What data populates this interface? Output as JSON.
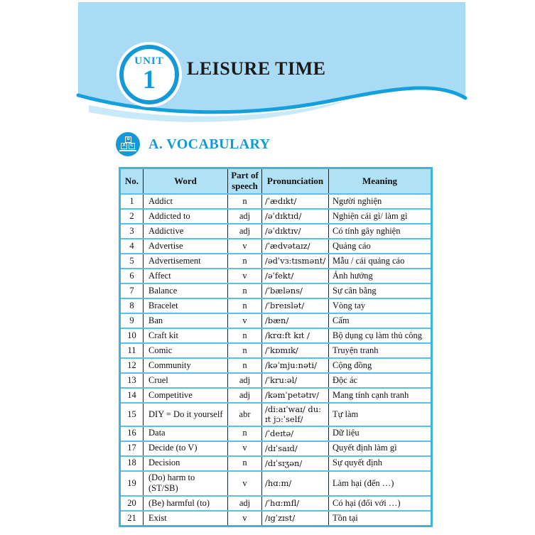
{
  "page": {
    "unit_badge": {
      "label": "UNIT",
      "number": "1"
    },
    "title": "LEISURE TIME",
    "section": {
      "heading": "A. VOCABULARY",
      "icon": "abc-blocks-icon",
      "icon_letters": {
        "top": "B",
        "left": "A",
        "right": "C"
      }
    }
  },
  "vocab_table": {
    "headers": [
      "No.",
      "Word",
      "Part of speech",
      "Pronunciation",
      "Meaning"
    ],
    "rows": [
      {
        "no": "1",
        "word": "Addict",
        "pos": "n",
        "pron": "/ˈædɪkt/",
        "meaning": "Người nghiện"
      },
      {
        "no": "2",
        "word": "Addicted to",
        "pos": "adj",
        "pron": "/əˈdɪktɪd/",
        "meaning": "Nghiện cái gì/ làm gì"
      },
      {
        "no": "3",
        "word": "Addictive",
        "pos": "adj",
        "pron": "/əˈdɪktɪv/",
        "meaning": "Có tính gây nghiện"
      },
      {
        "no": "4",
        "word": "Advertise",
        "pos": "v",
        "pron": "/ˈædvətaɪz/",
        "meaning": "Quảng cáo"
      },
      {
        "no": "5",
        "word": "Advertisement",
        "pos": "n",
        "pron": "/ədˈvɜ:tɪsmənt/",
        "meaning": "Mẫu / cái quảng cáo"
      },
      {
        "no": "6",
        "word": "Affect",
        "pos": "v",
        "pron": "/əˈfekt/",
        "meaning": "Ảnh hưởng"
      },
      {
        "no": "7",
        "word": "Balance",
        "pos": "n",
        "pron": "/ˈbæləns/",
        "meaning": "Sự cân bằng"
      },
      {
        "no": "8",
        "word": "Bracelet",
        "pos": "n",
        "pron": "/ˈbreɪslət/",
        "meaning": "Vòng tay"
      },
      {
        "no": "9",
        "word": "Ban",
        "pos": "v",
        "pron": "/bæn/",
        "meaning": "Cấm"
      },
      {
        "no": "10",
        "word": "Craft kit",
        "pos": "n",
        "pron": "/krɑ:ft kɪt /",
        "meaning": "Bộ dụng cụ làm thủ công"
      },
      {
        "no": "11",
        "word": "Comic",
        "pos": "n",
        "pron": "/ˈkɒmɪk/",
        "meaning": "Truyện tranh"
      },
      {
        "no": "12",
        "word": "Community",
        "pos": "n",
        "pron": "/kəˈmju:nəti/",
        "meaning": "Cộng đồng"
      },
      {
        "no": "13",
        "word": "Cruel",
        "pos": "adj",
        "pron": "/ˈkru:əl/",
        "meaning": "Độc ác"
      },
      {
        "no": "14",
        "word": "Competitive",
        "pos": "adj",
        "pron": "/kəmˈpetətɪv/",
        "meaning": "Mang tính cạnh tranh"
      },
      {
        "no": "15",
        "word": "DIY = Do it yourself",
        "pos": "abr",
        "pron": "/di:aɪˈwaɪ/ du: ɪt jɔ:ˈself/",
        "meaning": "Tự làm"
      },
      {
        "no": "16",
        "word": "Data",
        "pos": "n",
        "pron": "/ˈdeɪtə/",
        "meaning": "Dữ liệu"
      },
      {
        "no": "17",
        "word": "Decide (to V)",
        "pos": "v",
        "pron": "/dɪˈsaɪd/",
        "meaning": "Quyết định làm gì"
      },
      {
        "no": "18",
        "word": "Decision",
        "pos": "n",
        "pron": "/dɪˈsɪʒən/",
        "meaning": "Sự quyết định"
      },
      {
        "no": "19",
        "word": "(Do) harm to (ST/SB)",
        "pos": "v",
        "pron": "/hɑ:m/",
        "meaning": "Làm hại (đến …)"
      },
      {
        "no": "20",
        "word": "(Be) harmful  (to)",
        "pos": "adj",
        "pron": "/ˈhɑ:mfl/",
        "meaning": "Có hại (đối với …)"
      },
      {
        "no": "21",
        "word": "Exist",
        "pos": "v",
        "pron": "/ɪgˈzɪst/",
        "meaning": "Tồn tại"
      }
    ]
  },
  "colors": {
    "accent_blue": "#1499d8",
    "banner_fill": "#a9dcf4",
    "wave_stroke": "#14a0dd",
    "wave_shadow": "#c8e9f8",
    "table_header_bg": "#b0e1f4",
    "grid_horizontal": "#55c2ec",
    "grid_vertical": "#13242e",
    "outer_border": "#42b2e2"
  }
}
